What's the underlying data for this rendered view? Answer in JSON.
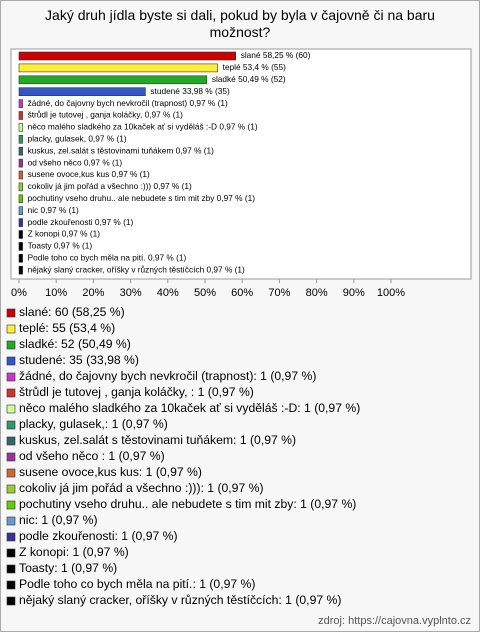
{
  "chart_data": {
    "type": "bar",
    "orientation": "horizontal",
    "title": "Jaký druh jídla byste si dali, pokud by byla v čajovně či na baru možnost?",
    "values": [
      58.25,
      53.4,
      50.49,
      33.98,
      0.97,
      0.97,
      0.97,
      0.97,
      0.97,
      0.97,
      0.97,
      0.97,
      0.97,
      0.97,
      0.97,
      0.97,
      0.97,
      0.97,
      0.97
    ],
    "value_labels": [
      "slané 58,25 % (60)",
      "teplé 53,4 % (55)",
      "sladké 50,49 % (52)",
      "studené 33,98 % (35)",
      "žádné, do čajovny bych nevkročil (trapnost) 0,97 % (1)",
      "štrůdl je tutovej , ganja koláčky,  0,97 % (1)",
      "něco malého sladkého za 10kaček ať si vyděláš :-D 0,97 % (1)",
      "placky, gulasek, 0,97 % (1)",
      "kuskus, zel.salát s těstovinami tuňákem 0,97 % (1)",
      "od všeho něco  0,97 % (1)",
      "susene ovoce,kus kus 0,97 % (1)",
      "cokoliv já jim pořád a všechno :))) 0,97 % (1)",
      "pochutiny vseho druhu.. ale nebudete s tim mit zby 0,97 % (1)",
      "nic 0,97 % (1)",
      "podle zkouřenosti 0,97 % (1)",
      "Z konopi 0,97 % (1)",
      "Toasty 0,97 % (1)",
      "Podle toho co bych měla na pití. 0,97 % (1)",
      "nějaký slaný cracker, oříšky v různých těstíčcích 0,97 % (1)"
    ],
    "colors": [
      "#cc0000",
      "#ffee33",
      "#22aa22",
      "#3355cc",
      "#cc33cc",
      "#cc3333",
      "#ccff99",
      "#339966",
      "#336666",
      "#993399",
      "#cc6633",
      "#99cc33",
      "#66cc00",
      "#6699cc",
      "#333399",
      "#000000",
      "#000000",
      "#000000",
      "#000000"
    ],
    "legend": [
      "slané: 60 (58,25 %)",
      "teplé: 55 (53,4 %)",
      "sladké: 52 (50,49 %)",
      "studené: 35 (33,98 %)",
      "žádné, do čajovny bych nevkročil (trapnost): 1 (0,97 %)",
      "štrůdl je tutovej , ganja koláčky, : 1 (0,97 %)",
      "něco malého sladkého za 10kaček ať si vyděláš :-D: 1 (0,97 %)",
      "placky, gulasek,: 1 (0,97 %)",
      "kuskus, zel.salát s těstovinami tuňákem: 1 (0,97 %)",
      "od všeho něco : 1 (0,97 %)",
      "susene ovoce,kus kus: 1 (0,97 %)",
      "cokoliv já jim pořád a všechno :))): 1 (0,97 %)",
      "pochutiny vseho druhu.. ale nebudete s tim mit zby: 1 (0,97 %)",
      "nic: 1 (0,97 %)",
      "podle zkouřenosti: 1 (0,97 %)",
      "Z konopi: 1 (0,97 %)",
      "Toasty: 1 (0,97 %)",
      "Podle toho co bych měla na pití.: 1 (0,97 %)",
      "nějaký slaný cracker, oříšky v různých těstíčcích: 1 (0,97 %)"
    ],
    "xlim": [
      0,
      100
    ],
    "xticks": [
      {
        "value": 0,
        "label": "0%"
      },
      {
        "value": 10,
        "label": "10%"
      },
      {
        "value": 20,
        "label": "20%"
      },
      {
        "value": 30,
        "label": "30%"
      },
      {
        "value": 40,
        "label": "40%"
      },
      {
        "value": 50,
        "label": "50%"
      },
      {
        "value": 60,
        "label": "60%"
      },
      {
        "value": 70,
        "label": "70%"
      },
      {
        "value": 80,
        "label": "80%"
      },
      {
        "value": 90,
        "label": "90%"
      },
      {
        "value": 100,
        "label": "100%"
      }
    ],
    "source": "zdroj: https://cajovna.vyplnto.cz"
  }
}
